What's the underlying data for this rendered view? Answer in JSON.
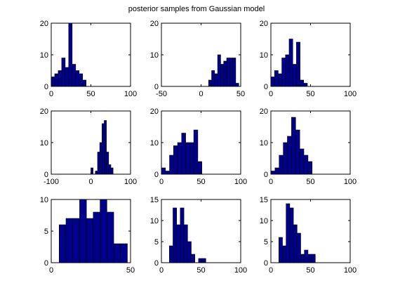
{
  "title": "posterior samples from Gaussian model",
  "chart_data": [
    {
      "type": "bar",
      "xlim": [
        0,
        100
      ],
      "ylim": [
        0,
        20
      ],
      "xticks": [
        0,
        50,
        100
      ],
      "yticks": [
        0,
        10,
        20
      ],
      "bin_edges": [
        0,
        4.4,
        8.8,
        13.2,
        17.6,
        22.0,
        26.4,
        30.8,
        35.2,
        39.6,
        44.0
      ],
      "values": [
        3,
        4,
        5,
        9,
        6,
        20,
        7,
        5,
        4,
        2
      ],
      "color": "#00008B"
    },
    {
      "type": "bar",
      "xlim": [
        -50,
        50
      ],
      "ylim": [
        0,
        20
      ],
      "xticks": [
        -50,
        0,
        50
      ],
      "yticks": [
        0,
        10,
        20
      ],
      "bin_edges": [
        9.5,
        13.3,
        17.1,
        20.9,
        24.7,
        28.5,
        32.3,
        36.1,
        39.9,
        43.7,
        47.5
      ],
      "values": [
        2,
        5,
        4,
        10,
        7,
        8,
        9,
        9,
        9,
        1
      ],
      "color": "#00008B"
    },
    {
      "type": "bar",
      "xlim": [
        0,
        100
      ],
      "ylim": [
        0,
        20
      ],
      "xticks": [
        0,
        50,
        100
      ],
      "yticks": [
        0,
        10,
        20
      ],
      "bin_edges": [
        0,
        4.6,
        9.2,
        13.8,
        18.4,
        23.0,
        27.6,
        32.2,
        36.8,
        41.4,
        46.0
      ],
      "values": [
        3,
        5,
        4,
        9,
        10,
        15,
        7,
        14,
        2,
        1
      ],
      "color": "#00008B"
    },
    {
      "type": "bar",
      "xlim": [
        -100,
        100
      ],
      "ylim": [
        0,
        20
      ],
      "xticks": [
        -100,
        0,
        100
      ],
      "yticks": [
        0,
        10,
        20
      ],
      "bin_edges": [
        0,
        5.6,
        11.2,
        16.8,
        22.4,
        28.0,
        33.6,
        39.2,
        44.8,
        50.4,
        56.0
      ],
      "values": [
        2,
        0,
        1,
        7,
        10,
        16,
        17,
        7,
        3,
        2
      ],
      "color": "#00008B"
    },
    {
      "type": "bar",
      "xlim": [
        0,
        100
      ],
      "ylim": [
        0,
        20
      ],
      "xticks": [
        0,
        50,
        100
      ],
      "yticks": [
        0,
        10,
        20
      ],
      "bin_edges": [
        0,
        5.1,
        10.2,
        15.3,
        20.4,
        25.5,
        30.6,
        35.7,
        40.8,
        45.9,
        51.0
      ],
      "values": [
        2,
        1,
        6,
        9,
        10,
        13,
        10,
        10,
        14,
        4
      ],
      "color": "#00008B"
    },
    {
      "type": "bar",
      "xlim": [
        0,
        100
      ],
      "ylim": [
        0,
        20
      ],
      "xticks": [
        0,
        50,
        100
      ],
      "yticks": [
        0,
        10,
        20
      ],
      "bin_edges": [
        0,
        5.2,
        10.4,
        15.6,
        20.8,
        26.0,
        31.2,
        36.4,
        41.6,
        46.8,
        52.0
      ],
      "values": [
        1,
        2,
        6,
        10,
        12,
        18,
        14,
        8,
        6,
        4
      ],
      "color": "#00008B"
    },
    {
      "type": "bar",
      "xlim": [
        0,
        50
      ],
      "ylim": [
        0,
        10
      ],
      "xticks": [
        0,
        50
      ],
      "yticks": [
        0,
        5,
        10
      ],
      "bin_edges": [
        5,
        9.3,
        13.6,
        17.9,
        22.2,
        26.5,
        30.8,
        35.1,
        39.4,
        43.7,
        48.0
      ],
      "values": [
        6,
        7,
        7,
        10,
        7,
        8,
        10,
        8,
        3,
        3
      ],
      "color": "#00008B"
    },
    {
      "type": "bar",
      "xlim": [
        0,
        100
      ],
      "ylim": [
        0,
        15
      ],
      "xticks": [
        0,
        50,
        100
      ],
      "yticks": [
        0,
        5,
        10,
        15
      ],
      "bin_edges": [
        10,
        14.6,
        19.2,
        23.8,
        28.4,
        33.0,
        37.6,
        42.2,
        46.8,
        51.4,
        56.0
      ],
      "values": [
        4,
        13,
        9,
        13,
        9,
        5,
        2,
        0,
        1,
        1
      ],
      "color": "#00008B"
    },
    {
      "type": "bar",
      "xlim": [
        0,
        100
      ],
      "ylim": [
        0,
        15
      ],
      "xticks": [
        0,
        50,
        100
      ],
      "yticks": [
        0,
        5,
        10,
        15
      ],
      "bin_edges": [
        10,
        14.6,
        19.2,
        23.8,
        28.4,
        33.0,
        37.6,
        42.2,
        46.8,
        51.4,
        56.0
      ],
      "values": [
        6,
        4,
        14,
        13,
        9,
        7,
        2,
        3,
        2,
        2
      ],
      "color": "#00008B"
    }
  ]
}
